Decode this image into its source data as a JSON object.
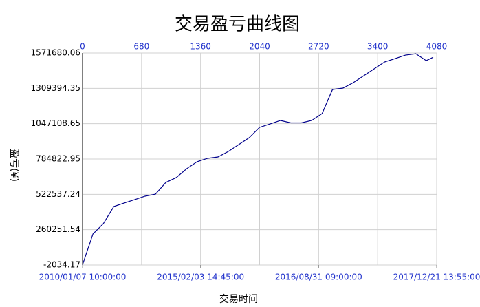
{
  "chart_data": {
    "type": "line",
    "title": "交易盈亏曲线图",
    "x_label": "交易时间",
    "y_label": "盈亏(¥)",
    "x": [
      0,
      120,
      240,
      360,
      480,
      600,
      720,
      840,
      960,
      1080,
      1200,
      1320,
      1440,
      1560,
      1680,
      1800,
      1920,
      2040,
      2160,
      2280,
      2400,
      2520,
      2640,
      2760,
      2880,
      3000,
      3120,
      3240,
      3360,
      3480,
      3600,
      3720,
      3840,
      3960,
      4040
    ],
    "series": [
      {
        "name": "盈亏",
        "color": "#00008b",
        "values": [
          0,
          228000,
          305000,
          432000,
          458000,
          483000,
          509000,
          524000,
          611000,
          647000,
          713000,
          765000,
          790000,
          800000,
          841000,
          892000,
          943000,
          1020000,
          1045000,
          1071000,
          1053000,
          1053000,
          1071000,
          1122000,
          1301000,
          1311000,
          1352000,
          1403000,
          1454000,
          1505000,
          1530000,
          1556000,
          1566000,
          1515000,
          1540000
        ]
      }
    ],
    "xlim": [
      0,
      4080
    ],
    "xticks": [
      0,
      680,
      1360,
      2040,
      2720,
      3400,
      4080
    ],
    "x2ticks": [
      {
        "value": 0,
        "label": "2010/01/07 10:00:00"
      },
      {
        "value": 1360,
        "label": "2015/02/03 14:45:00"
      },
      {
        "value": 2720,
        "label": "2016/08/31 09:00:00"
      },
      {
        "value": 4080,
        "label": "2017/12/21 13:55:00"
      }
    ],
    "ylim": [
      -2034.17,
      1571680.06
    ],
    "yticks": [
      -2034.17,
      260251.54,
      522537.24,
      784822.95,
      1047108.65,
      1309394.35,
      1571680.06
    ],
    "grid": true
  }
}
